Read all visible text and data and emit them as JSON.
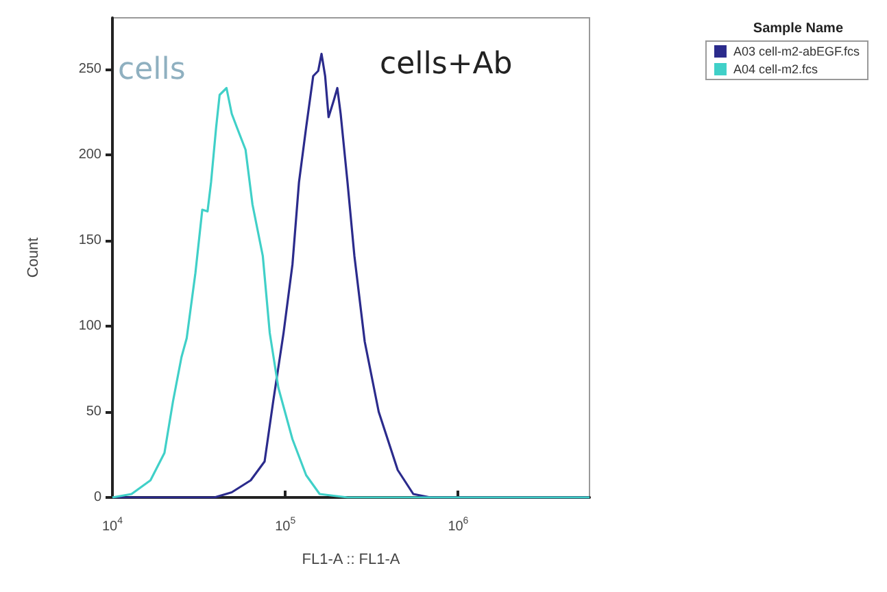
{
  "chart_data": {
    "type": "line",
    "xlabel": "FL1-A :: FL1-A",
    "ylabel": "Count",
    "legend_title": "Sample Name",
    "legend": "top right",
    "log": "x",
    "grid": false,
    "marker": "none",
    "line_style": "solid",
    "xlim": [
      10000,
      5750000
    ],
    "xticks": [
      {
        "value": 10000,
        "label": "10$^{4}$"
      },
      {
        "value": 100000,
        "label": "10$^{5}$"
      },
      {
        "value": 1000000,
        "label": "10$^{6}$"
      }
    ],
    "ylim": [
      0,
      280
    ],
    "yticks": [
      0,
      50,
      100,
      150,
      200,
      250
    ],
    "series": [
      {
        "name": "A03 cell-m2-abEGF.fcs",
        "color": "#2b2b8c",
        "x": [
          10000,
          38900,
          49000,
          63100,
          75900,
          85100,
          97700,
          110000,
          120000,
          132000,
          145000,
          155000,
          162000,
          170000,
          178000,
          191000,
          200000,
          209000,
          229000,
          251000,
          288000,
          347000,
          447000,
          550000,
          692000,
          5750000
        ],
        "values": [
          0,
          0,
          3,
          10,
          21,
          56,
          96,
          136,
          184,
          216,
          246,
          249,
          259,
          246,
          222,
          232,
          239,
          224,
          184,
          141,
          91,
          50,
          16,
          2,
          0,
          0
        ]
      },
      {
        "name": "A04 cell-m2.fcs",
        "color": "#40d0c8",
        "x": [
          10000,
          12900,
          16600,
          20000,
          22400,
          25100,
          26900,
          30200,
          33100,
          35500,
          37200,
          39800,
          41700,
          45700,
          49000,
          52500,
          58900,
          64600,
          74100,
          81300,
          91200,
          110000,
          132000,
          158000,
          229000,
          5750000
        ],
        "values": [
          0,
          2,
          10,
          26,
          56,
          82,
          93,
          131,
          168,
          167,
          184,
          216,
          235,
          239,
          224,
          216,
          203,
          171,
          141,
          96,
          64,
          34,
          13,
          2,
          0,
          0
        ]
      }
    ],
    "annotations": [
      "cells",
      "cells+Ab"
    ]
  }
}
